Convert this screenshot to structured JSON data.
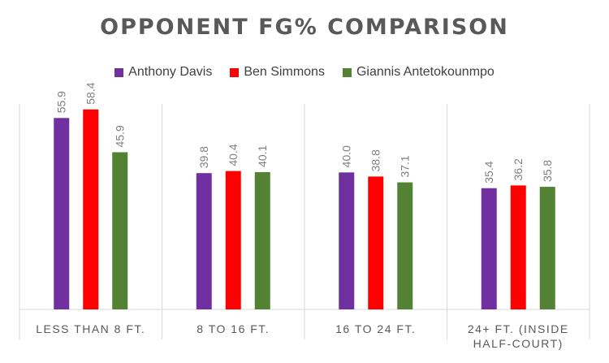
{
  "chart_data": {
    "type": "bar",
    "title": "OPPONENT FG% COMPARISON",
    "categories": [
      [
        "LESS THAN 8 FT."
      ],
      [
        "8 TO 16 FT."
      ],
      [
        "16 TO 24 FT."
      ],
      [
        "24+ FT. (INSIDE",
        "HALF-COURT)"
      ]
    ],
    "series": [
      {
        "name": "Anthony Davis",
        "color": "#7030A0",
        "values": [
          55.9,
          39.8,
          40.0,
          35.4
        ],
        "labels": [
          "55.9",
          "39.8",
          "40.0",
          "35.4"
        ]
      },
      {
        "name": "Ben Simmons",
        "color": "#FF0000",
        "values": [
          58.4,
          40.4,
          38.8,
          36.2
        ],
        "labels": [
          "58.4",
          "40.4",
          "38.8",
          "36.2"
        ]
      },
      {
        "name": "Giannis Antetokounmpo",
        "color": "#548235",
        "values": [
          45.9,
          40.1,
          37.1,
          35.8
        ],
        "labels": [
          "45.9",
          "40.1",
          "37.1",
          "35.8"
        ]
      }
    ],
    "ylim": [
      0,
      60
    ],
    "legend_position": "top",
    "gridlines": false,
    "category_separators": true
  }
}
